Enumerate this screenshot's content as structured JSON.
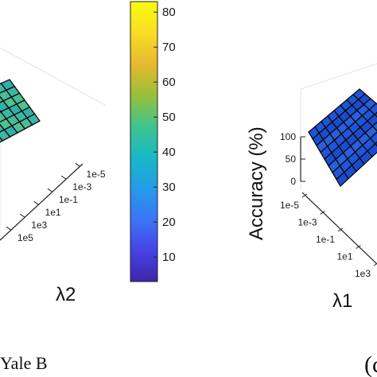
{
  "panels": [
    {
      "chart_data": {
        "type": "surface3d",
        "xlabel": "",
        "ylabel": "λ2",
        "zlabel": "",
        "y_ticks": [
          "1e-5",
          "1e-3",
          "1e-1",
          "1e1",
          "1e3",
          "1e5"
        ],
        "surface_colors": [
          "#3bb7a4",
          "#48bc9a",
          "#52c091",
          "#2fb0ac"
        ],
        "caption": "Yale B"
      }
    },
    {
      "chart_data": {
        "type": "surface3d",
        "xlabel": "λ1",
        "ylabel": "",
        "zlabel": "Accuracy (%)",
        "z_ticks": [
          "100",
          "50",
          "0"
        ],
        "x_ticks": [
          "1e-5",
          "1e-3",
          "1e-1",
          "1e1",
          "1e3"
        ],
        "surface_colors": [
          "#1f55d9",
          "#2a5fe0",
          "#1a4ccf"
        ],
        "caption": "(c"
      }
    }
  ],
  "colorbar": {
    "ticks": [
      80,
      70,
      60,
      50,
      40,
      30,
      20,
      10
    ],
    "min": 3,
    "max": 83,
    "colors": [
      "#3e26a8",
      "#4742e5",
      "#3b76f6",
      "#249ce8",
      "#18b9c6",
      "#3fc58c",
      "#9abf3a",
      "#e7b92f",
      "#fadd24",
      "#f9fb0e"
    ]
  }
}
